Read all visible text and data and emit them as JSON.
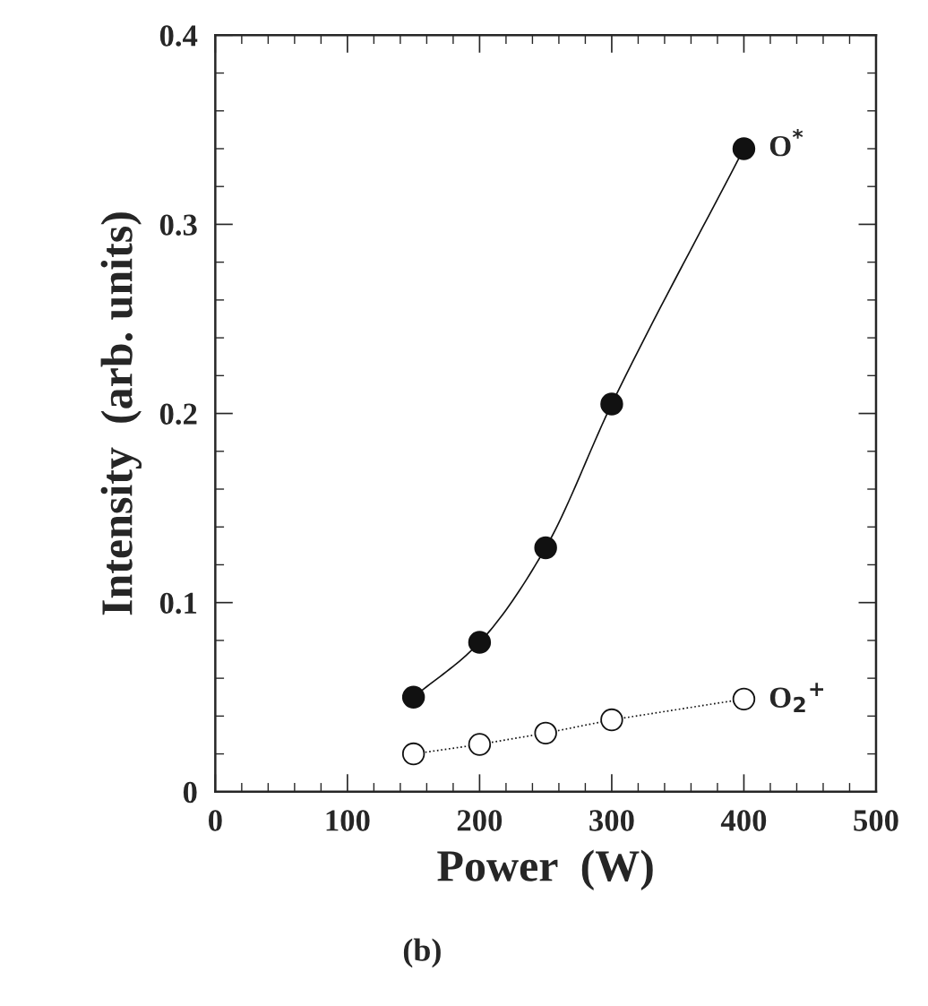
{
  "chart_data": {
    "type": "line",
    "xlabel": "Power  (W)",
    "ylabel": "Intensity  (arb. units)",
    "xlim": [
      0,
      500
    ],
    "ylim": [
      0,
      0.4
    ],
    "xticks": [
      0,
      100,
      200,
      300,
      400,
      500
    ],
    "yticks": [
      0,
      0.1,
      0.2,
      0.3,
      0.4
    ],
    "marker": "circle",
    "grid": false,
    "legend": false,
    "series": [
      {
        "name": "O$^{*}$",
        "color": "#111111",
        "line_style": "solid",
        "x": [
          150,
          200,
          250,
          300,
          400
        ],
        "values": [
          0.05,
          0.079,
          0.129,
          0.205,
          0.34
        ]
      },
      {
        "name": "O$_{2}$$^{+}$",
        "color": "#111111",
        "line_style": "dotted",
        "x": [
          150,
          200,
          250,
          300,
          400
        ],
        "values": [
          0.02,
          0.025,
          0.031,
          0.038,
          0.049
        ]
      }
    ],
    "annotations": [
      "(b)"
    ]
  }
}
